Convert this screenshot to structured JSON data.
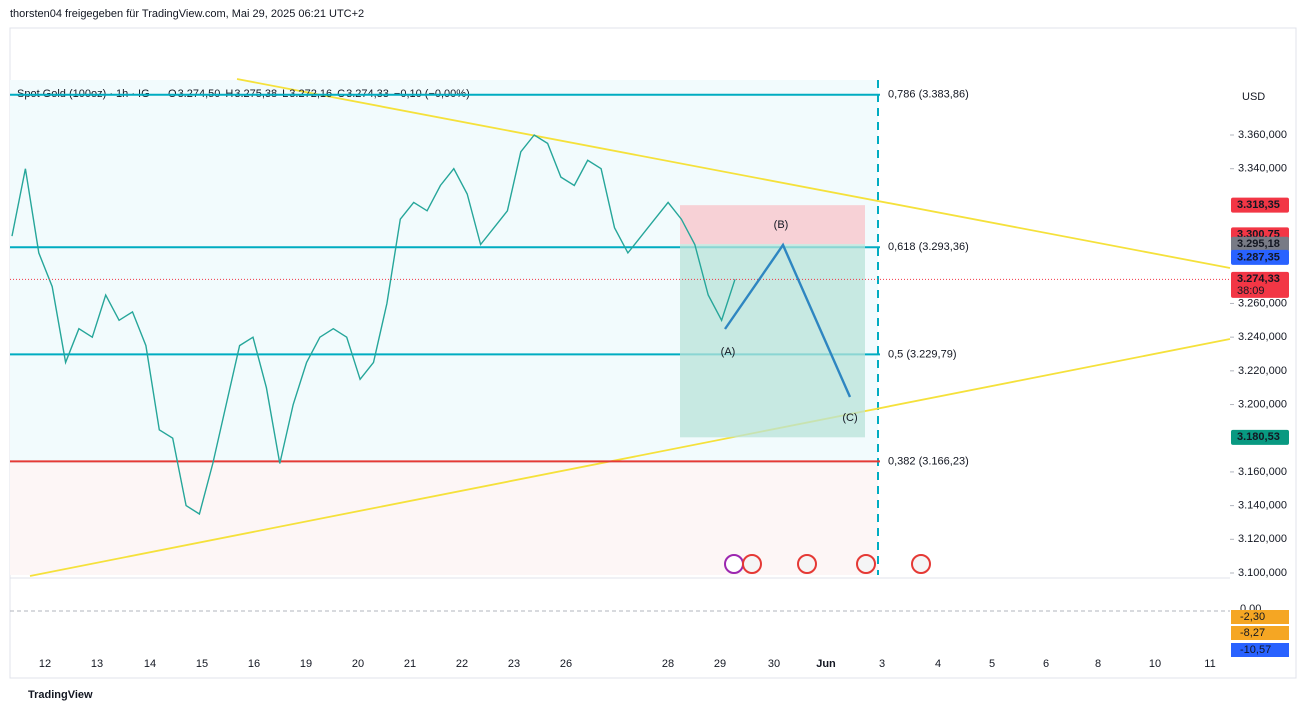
{
  "header": {
    "author": "thorsten04 freigegeben für TradingView.com, Mai 29, 2025 06:21 UTC+2"
  },
  "legend": {
    "symbol": "Spot Gold (100oz) · 1h · IG",
    "o_label": "O",
    "o": "3.274,50",
    "h_label": "H",
    "h": "3.275,38",
    "l_label": "L",
    "l": "3.272,16",
    "c_label": "C",
    "c": "3.274,33",
    "change": "−0,10 (−0,00%)"
  },
  "currency": "USD",
  "price_axis": {
    "ticks": [
      {
        "value": 3360,
        "label": "3.360,000"
      },
      {
        "value": 3340,
        "label": "3.340,000"
      },
      {
        "value": 3260,
        "label": "3.260,000"
      },
      {
        "value": 3240,
        "label": "3.240,000"
      },
      {
        "value": 3220,
        "label": "3.220,000"
      },
      {
        "value": 3200,
        "label": "3.200,000"
      },
      {
        "value": 3160,
        "label": "3.160,000"
      },
      {
        "value": 3140,
        "label": "3.140,000"
      },
      {
        "value": 3120,
        "label": "3.120,000"
      },
      {
        "value": 3100,
        "label": "3.100,000"
      }
    ]
  },
  "fib_levels": [
    {
      "value": 3383.86,
      "label": "0,786 (3.383,86)",
      "color": "#00acc1"
    },
    {
      "value": 3293.36,
      "label": "0,618 (3.293,36)",
      "color": "#00acc1"
    },
    {
      "value": 3229.79,
      "label": "0,5 (3.229,79)",
      "color": "#00acc1"
    },
    {
      "value": 3166.23,
      "label": "0,382 (3.166,23)",
      "color": "#e53935"
    }
  ],
  "price_tags": [
    {
      "value": 3318.35,
      "label": "3.318,35",
      "color": "#f23645"
    },
    {
      "value": 3300.75,
      "label": "3.300,75",
      "color": "#f23645"
    },
    {
      "value": 3295.18,
      "label": "3.295,18",
      "color": "#787b86"
    },
    {
      "value": 3287.35,
      "label": "3.287,35",
      "color": "#2962ff"
    },
    {
      "value": 3274.33,
      "label": "3.274,33",
      "sub": "38:09",
      "color": "#f23645"
    },
    {
      "value": 3180.53,
      "label": "3.180,53",
      "color": "#089981"
    }
  ],
  "position": {
    "stop": 3318.35,
    "entry": 3295.18,
    "target": 3180.53
  },
  "waves": [
    "(A)",
    "(B)",
    "(C)"
  ],
  "price": {
    "values": [
      3300,
      3340,
      3290,
      3270,
      3225,
      3245,
      3240,
      3265,
      3250,
      3255,
      3235,
      3185,
      3180,
      3140,
      3135,
      3165,
      3200,
      3235,
      3240,
      3210,
      3165,
      3200,
      3225,
      3240,
      3245,
      3240,
      3215,
      3225,
      3260,
      3310,
      3320,
      3315,
      3330,
      3340,
      3325,
      3295,
      3305,
      3315,
      3350,
      3360,
      3355,
      3335,
      3330,
      3345,
      3340,
      3305,
      3290,
      3300,
      3310,
      3320,
      3310,
      3295,
      3265,
      3250,
      3274.33
    ]
  },
  "macd_labels": [
    "0,00",
    "-2,30",
    "-8,27",
    "-10,57"
  ],
  "dates": [
    "12",
    "13",
    "14",
    "15",
    "16",
    "19",
    "20",
    "21",
    "22",
    "23",
    "26",
    "28",
    "29",
    "30",
    "Jun",
    "3",
    "4",
    "5",
    "6",
    "8",
    "10",
    "11"
  ],
  "footer": "TradingView"
}
